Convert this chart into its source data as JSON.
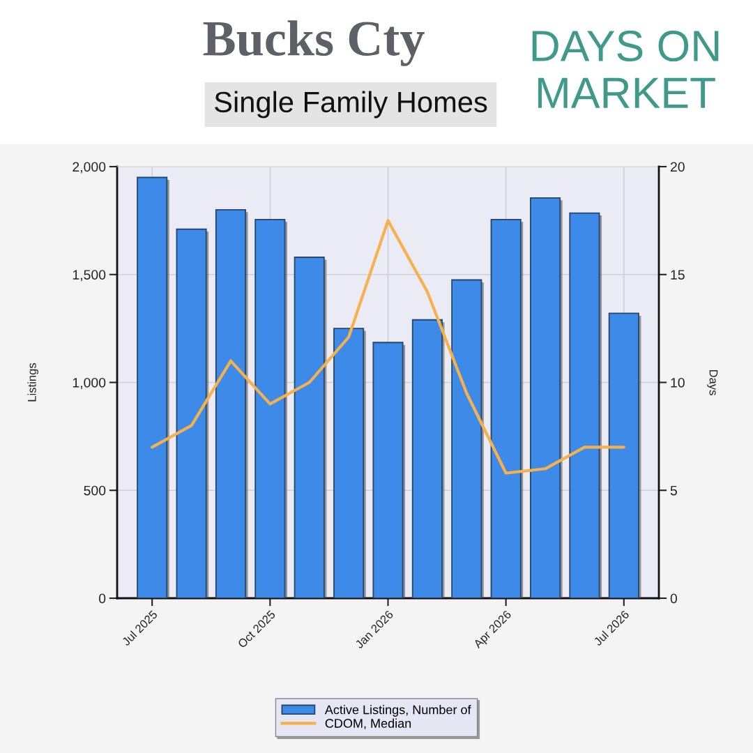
{
  "chart_data": {
    "type": "bar",
    "title": "Bucks Cty",
    "subtitle": "Single Family Homes",
    "annotations": [
      "DAYS ON MARKET"
    ],
    "ylabel": "Listings",
    "y2label": "Days",
    "categories": [
      "Jul 2025",
      null,
      null,
      "Oct 2025",
      null,
      null,
      "Jan 2026",
      null,
      null,
      "Apr 2026",
      null,
      null,
      "Jul 2026"
    ],
    "series": [
      {
        "name": "Active Listings, Number of",
        "color": "#3d8ae8",
        "values": [
          1950,
          1710,
          1800,
          1755,
          1580,
          1250,
          1185,
          1290,
          1475,
          1755,
          1855,
          1785,
          1320
        ]
      },
      {
        "name": "CDOM, Median",
        "type": "line",
        "axis": "y2",
        "color": "#f5b24c",
        "values": [
          7.0,
          8.0,
          11.0,
          9.0,
          10.0,
          12.1,
          17.5,
          14.2,
          9.5,
          5.8,
          6.0,
          7.0,
          7.0
        ]
      }
    ],
    "ylim": [
      0,
      2000
    ],
    "yticks": [
      0,
      500,
      {
        "value": 1000,
        "label": "1,000"
      },
      {
        "value": 1500,
        "label": "1,500"
      },
      {
        "value": 2000,
        "label": "2,000"
      }
    ],
    "y2lim": [
      0,
      20
    ],
    "y2ticks": [
      0,
      5,
      10,
      15,
      20
    ],
    "grid": true,
    "legend": "bottom"
  }
}
